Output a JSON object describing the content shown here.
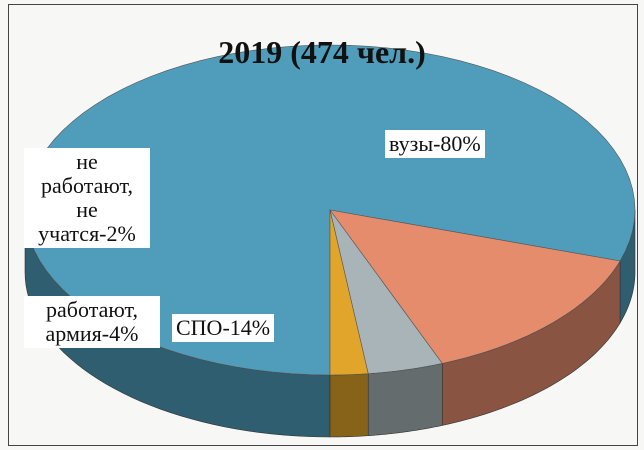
{
  "chart_data": {
    "type": "pie",
    "title": "2019 (474 чел.)",
    "values": [
      80,
      14,
      4,
      2
    ],
    "value_labels": [
      "вузы-80%",
      "СПО-14%",
      "работают, армия-4%",
      "не работают, не учатся-2%"
    ],
    "colors": [
      "#4f9dbb",
      "#e58c6c",
      "#a9b4b8",
      "#e0a52a"
    ]
  }
}
